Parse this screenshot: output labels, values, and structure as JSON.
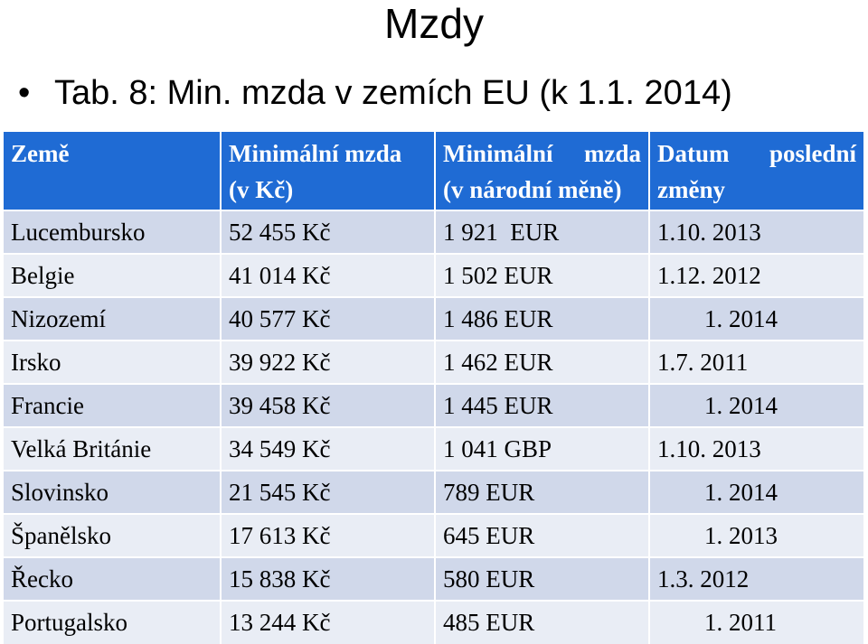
{
  "slide": {
    "title": "Mzdy",
    "bullet": "Tab. 8: Min. mzda v zemích EU (k 1.1. 2014)"
  },
  "table": {
    "headers": [
      {
        "line1": "Země",
        "line2": ""
      },
      {
        "line1": "Minimální mzda",
        "line2": "(v Kč)"
      },
      {
        "line1a": "Minimální",
        "line1b": "mzda",
        "line2": "(v národní měně)"
      },
      {
        "line1a": "Datum",
        "line1b": "poslední",
        "line2": "změny"
      }
    ],
    "rows": [
      {
        "country": "Lucembursko",
        "czk": "52 455 Kč",
        "national": "1 921  EUR",
        "date": "1.10. 2013"
      },
      {
        "country": "Belgie",
        "czk": "41 014 Kč",
        "national": "1 502 EUR",
        "date": "1.12. 2012"
      },
      {
        "country": "Nizozemí",
        "czk": "40 577 Kč",
        "national": "1 486 EUR",
        "date": "1. 2014"
      },
      {
        "country": "Irsko",
        "czk": "39 922 Kč",
        "national": "1 462 EUR",
        "date": "1.7. 2011"
      },
      {
        "country": "Francie",
        "czk": "39 458 Kč",
        "national": "1 445 EUR",
        "date": "1. 2014"
      },
      {
        "country": "Velká Británie",
        "czk": "34 549 Kč",
        "national": "1 041 GBP",
        "date": "1.10. 2013"
      },
      {
        "country": "Slovinsko",
        "czk": "21 545 Kč",
        "national": "789 EUR",
        "date": "1. 2014"
      },
      {
        "country": "Španělsko",
        "czk": "17 613 Kč",
        "national": "645 EUR",
        "date": "1. 2013"
      },
      {
        "country": "Řecko",
        "czk": "15 838 Kč",
        "national": "580 EUR",
        "date": "1.3. 2012"
      },
      {
        "country": "Portugalsko",
        "czk": "13 244 Kč",
        "national": "485 EUR",
        "date": "1. 2011"
      }
    ]
  },
  "colors": {
    "header_bg": "#1f6bd4",
    "row_odd_bg": "#d0d8ea",
    "row_even_bg": "#e9edf5"
  }
}
